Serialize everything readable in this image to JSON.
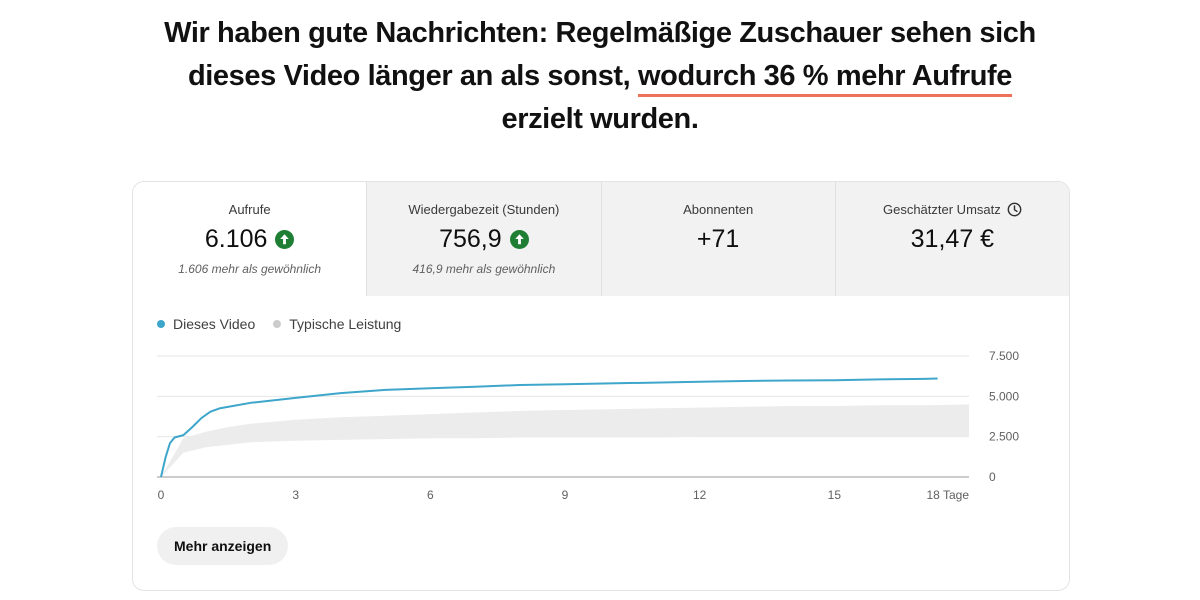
{
  "headline": {
    "part1": "Wir haben gute Nachrichten: Regelmäßige Zuschauer sehen sich dieses Video länger an als sonst, ",
    "highlight": "wodurch 36 % mehr Aufrufe",
    "part2": " erzielt wurden."
  },
  "metrics": [
    {
      "label": "Aufrufe",
      "value": "6.106",
      "sub": "1.606 mehr als gewöhnlich",
      "trend_icon": "arrow-up-circle-icon",
      "trend_color": "#1e7e34"
    },
    {
      "label": "Wiedergabezeit (Stunden)",
      "value": "756,9",
      "sub": "416,9 mehr als gewöhnlich",
      "trend_icon": "arrow-up-circle-icon",
      "trend_color": "#1e7e34"
    },
    {
      "label": "Abonnenten",
      "value": "+71",
      "sub": ""
    },
    {
      "label": "Geschätzter Umsatz",
      "value": "31,47 €",
      "sub": "",
      "info_icon": "clock-icon"
    }
  ],
  "legend": {
    "video": "Dieses Video",
    "typical": "Typische Leistung"
  },
  "colors": {
    "video_line": "#3ea6ca",
    "typical_band": "#ececec",
    "typical_dot": "#cccccc",
    "highlight_underline": "#f0715a",
    "up_green": "#1e7e34"
  },
  "button": {
    "label": "Mehr anzeigen"
  },
  "chart_data": {
    "type": "line",
    "ylim": [
      0,
      7500
    ],
    "y_ticks": [
      0,
      2500,
      5000,
      7500
    ],
    "y_tick_labels": [
      "0",
      "2.500",
      "5.000",
      "7.500"
    ],
    "xlim": [
      0,
      18
    ],
    "x_ticks": [
      0,
      3,
      6,
      9,
      12,
      15,
      18
    ],
    "x_tick_labels": [
      "0",
      "3",
      "6",
      "9",
      "12",
      "15",
      "18 Tage"
    ],
    "grid": true,
    "legend_position": "top-left",
    "series": [
      {
        "name": "Dieses Video",
        "x": [
          0,
          0.1,
          0.2,
          0.3,
          0.5,
          0.7,
          0.9,
          1.1,
          1.3,
          1.6,
          2.0,
          2.5,
          3.0,
          3.5,
          4.0,
          4.5,
          5.0,
          6.0,
          7.0,
          8.0,
          9.0,
          10.0,
          11.0,
          12.0,
          13.0,
          14.0,
          15.0,
          16.0,
          17.0,
          17.3
        ],
        "y": [
          0,
          1200,
          2100,
          2450,
          2600,
          3100,
          3650,
          4050,
          4250,
          4400,
          4600,
          4750,
          4900,
          5050,
          5200,
          5300,
          5400,
          5500,
          5600,
          5700,
          5750,
          5800,
          5850,
          5900,
          5950,
          5980,
          6000,
          6050,
          6080,
          6106
        ]
      },
      {
        "name": "Typische Leistung",
        "x": [
          0,
          0.5,
          1,
          1.5,
          2,
          3,
          4,
          5,
          6,
          7,
          8,
          9,
          10,
          11,
          12,
          13,
          14,
          15,
          16,
          17,
          18
        ],
        "low": [
          0,
          1500,
          1850,
          2000,
          2150,
          2250,
          2300,
          2350,
          2400,
          2400,
          2450,
          2450,
          2450,
          2450,
          2500,
          2500,
          2500,
          2500,
          2500,
          2500,
          2500
        ],
        "high": [
          0,
          2400,
          2800,
          3100,
          3300,
          3550,
          3700,
          3800,
          3900,
          4000,
          4100,
          4150,
          4200,
          4250,
          4300,
          4350,
          4400,
          4400,
          4450,
          4450,
          4500
        ]
      }
    ]
  }
}
